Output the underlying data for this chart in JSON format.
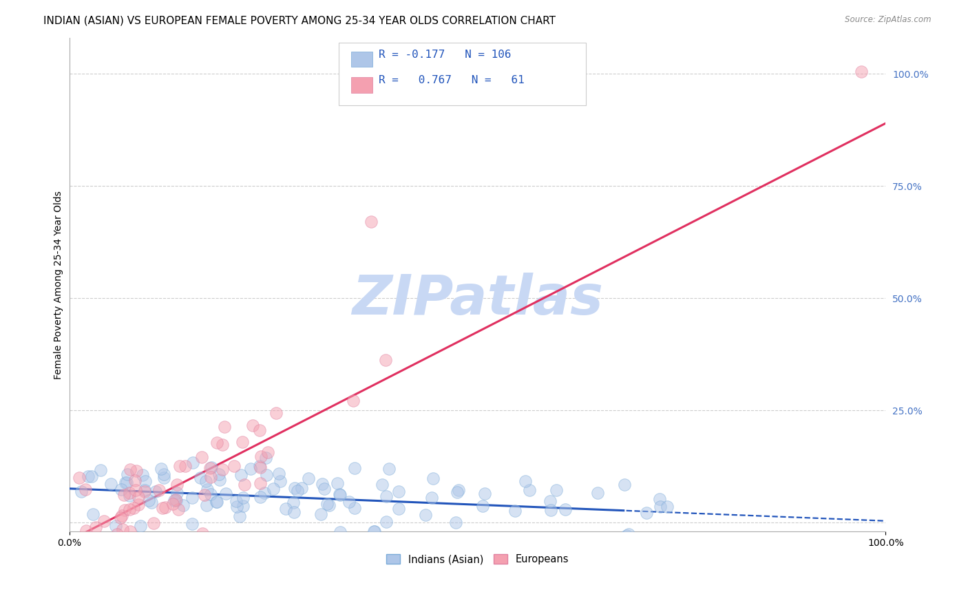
{
  "title": "INDIAN (ASIAN) VS EUROPEAN FEMALE POVERTY AMONG 25-34 YEAR OLDS CORRELATION CHART",
  "source": "Source: ZipAtlas.com",
  "ylabel": "Female Poverty Among 25-34 Year Olds",
  "xlim": [
    0.0,
    1.0
  ],
  "ylim": [
    -0.02,
    1.08
  ],
  "legend_entries": [
    {
      "label": "Indians (Asian)",
      "color": "#aec6e8",
      "edge": "#7aaad8",
      "R": "-0.177",
      "N": "106"
    },
    {
      "label": "Europeans",
      "color": "#f4a0b0",
      "edge": "#e080a0",
      "R": " 0.767",
      "N": " 61"
    }
  ],
  "watermark": "ZIPatlas",
  "watermark_color": "#c8d8f4",
  "blue_line_slope": -0.072,
  "blue_line_intercept": 0.076,
  "blue_line_split": 0.68,
  "pink_line_slope": 0.93,
  "pink_line_intercept": -0.04,
  "background_color": "#ffffff",
  "grid_color": "#cccccc",
  "grid_yticks": [
    0.0,
    0.25,
    0.5,
    0.75,
    1.0
  ],
  "right_yticks": [
    1.0,
    0.75,
    0.5,
    0.25
  ],
  "right_yticklabels": [
    "100.0%",
    "75.0%",
    "50.0%",
    "25.0%"
  ],
  "xtick_vals": [
    0.0,
    1.0
  ],
  "xtick_labels": [
    "0.0%",
    "100.0%"
  ],
  "title_fontsize": 11,
  "axis_label_fontsize": 10,
  "tick_fontsize": 10,
  "scatter_alpha": 0.5,
  "scatter_size": 160,
  "blue_scatter_seed": 42,
  "pink_scatter_seed": 7
}
